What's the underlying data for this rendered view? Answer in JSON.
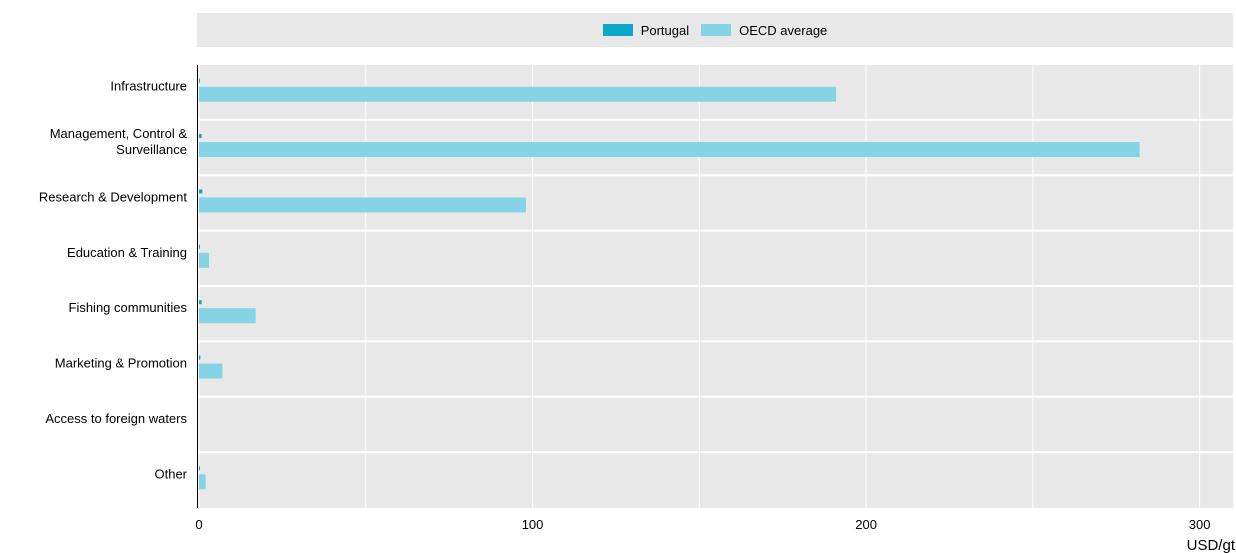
{
  "chart_data": {
    "type": "bar",
    "orientation": "horizontal",
    "categories": [
      "Infrastructure",
      "Management, Control & Surveillance",
      "Research & Development",
      "Education & Training",
      "Fishing communities",
      "Marketing & Promotion",
      "Access to foreign waters",
      "Other"
    ],
    "category_lines": [
      [
        "Infrastructure"
      ],
      [
        "Management, Control &",
        "Surveillance"
      ],
      [
        "Research & Development"
      ],
      [
        "Education & Training"
      ],
      [
        "Fishing communities"
      ],
      [
        "Marketing & Promotion"
      ],
      [
        "Access to foreign waters"
      ],
      [
        "Other"
      ]
    ],
    "series": [
      {
        "name": "Portugal",
        "color": "#0ca6c9",
        "values": [
          0.3,
          0.8,
          1.0,
          0.3,
          0.8,
          0.4,
          0.0,
          0.3
        ]
      },
      {
        "name": "OECD average",
        "color": "#85d4e6",
        "values": [
          191,
          282,
          98,
          3,
          17,
          7,
          0,
          2
        ]
      }
    ],
    "xlabel": "USD/gt",
    "xlim": [
      0,
      310
    ],
    "xticks": [
      0,
      100,
      200,
      300
    ],
    "xticks_minor": [
      50,
      150,
      250
    ],
    "grid": true,
    "legend_position": "top"
  }
}
